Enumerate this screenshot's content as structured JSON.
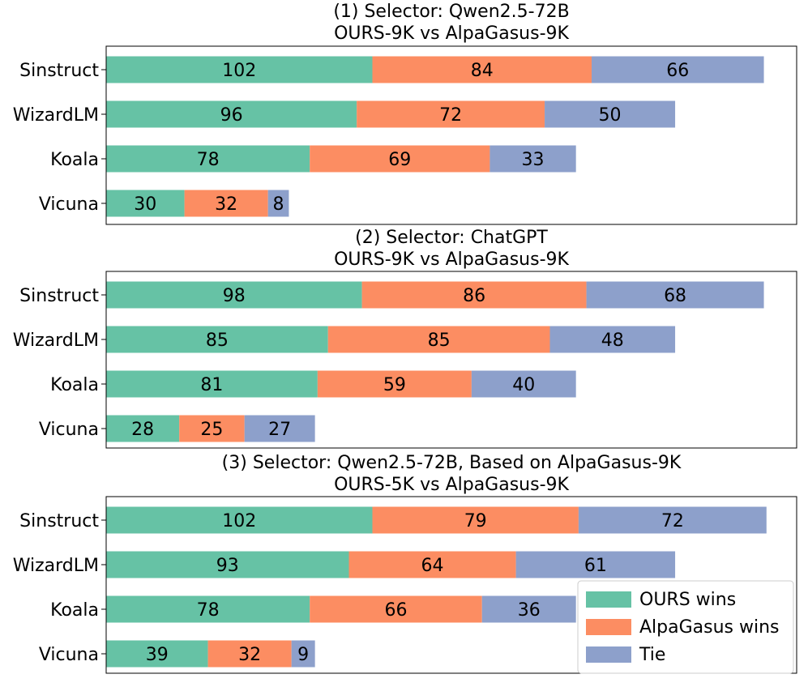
{
  "chart_data": [
    {
      "type": "bar",
      "orientation": "horizontal",
      "stacked": true,
      "title": "(1) Selector: Qwen2.5-72B",
      "subtitle": "OURS-9K vs AlpaGasus-9K",
      "categories": [
        "Sinstruct",
        "WizardLM",
        "Koala",
        "Vicuna"
      ],
      "series": [
        {
          "name": "OURS wins",
          "values": [
            102,
            96,
            78,
            30
          ]
        },
        {
          "name": "AlpaGasus wins",
          "values": [
            84,
            72,
            69,
            32
          ]
        },
        {
          "name": "Tie",
          "values": [
            66,
            50,
            33,
            8
          ]
        }
      ],
      "xlim": [
        0,
        260
      ],
      "grid": false
    },
    {
      "type": "bar",
      "orientation": "horizontal",
      "stacked": true,
      "title": "(2) Selector: ChatGPT",
      "subtitle": "OURS-9K vs AlpaGasus-9K",
      "categories": [
        "Sinstruct",
        "WizardLM",
        "Koala",
        "Vicuna"
      ],
      "series": [
        {
          "name": "OURS wins",
          "values": [
            98,
            85,
            81,
            28
          ]
        },
        {
          "name": "AlpaGasus wins",
          "values": [
            86,
            85,
            59,
            25
          ]
        },
        {
          "name": "Tie",
          "values": [
            68,
            48,
            40,
            27
          ]
        }
      ],
      "xlim": [
        0,
        260
      ],
      "grid": false
    },
    {
      "type": "bar",
      "orientation": "horizontal",
      "stacked": true,
      "title": "(3) Selector: Qwen2.5-72B, Based on AlpaGasus-9K",
      "subtitle": "OURS-5K vs AlpaGasus-9K",
      "categories": [
        "Sinstruct",
        "WizardLM",
        "Koala",
        "Vicuna"
      ],
      "series": [
        {
          "name": "OURS wins",
          "values": [
            102,
            93,
            78,
            39
          ]
        },
        {
          "name": "AlpaGasus wins",
          "values": [
            79,
            64,
            66,
            32
          ]
        },
        {
          "name": "Tie",
          "values": [
            72,
            61,
            36,
            9
          ]
        }
      ],
      "xlim": [
        0,
        260
      ],
      "grid": false,
      "legend": "bottom-right"
    }
  ],
  "legend": {
    "placement": "bottom-right",
    "entries": [
      "OURS wins",
      "AlpaGasus wins",
      "Tie"
    ]
  },
  "colors": {
    "OURS wins": "#66c2a5",
    "AlpaGasus wins": "#fc8d62",
    "Tie": "#8da0cb"
  }
}
